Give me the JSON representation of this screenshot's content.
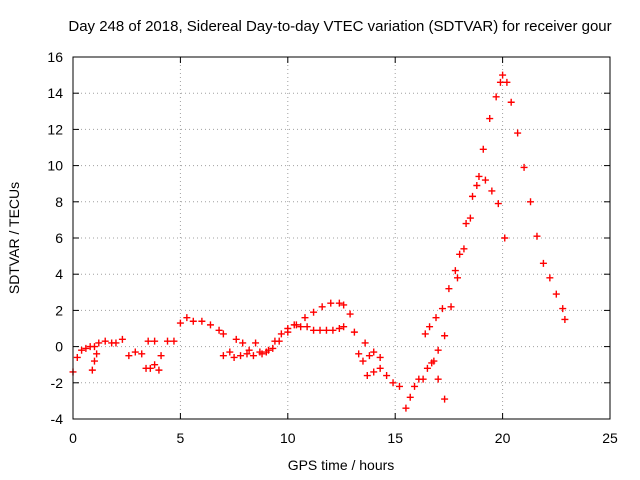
{
  "chart_data": {
    "type": "scatter",
    "title": "Day 248 of 2018, Sidereal Day-to-day VTEC variation (SDTVAR) for receiver gour",
    "xlabel": "GPS time / hours",
    "ylabel": "SDTVAR / TECUs",
    "xlim": [
      0,
      25
    ],
    "ylim": [
      -4,
      16
    ],
    "xticks": [
      0,
      5,
      10,
      15,
      20,
      25
    ],
    "yticks": [
      -4,
      -2,
      0,
      2,
      4,
      6,
      8,
      10,
      12,
      14,
      16
    ],
    "xtick_labels": [
      "0",
      "5",
      "10",
      "15",
      "20",
      "25"
    ],
    "ytick_labels": [
      "-4",
      "-2",
      "0",
      "2",
      "4",
      "6",
      "8",
      "10",
      "12",
      "14",
      "16"
    ],
    "grid": true,
    "marker": "+",
    "series": [
      {
        "name": "SDTVAR",
        "color": "#ff0000",
        "segments": [
          {
            "x": [
              0.0,
              0.2,
              0.4,
              0.6,
              0.8,
              1.0,
              1.2,
              1.5,
              1.8,
              2.0,
              2.3,
              2.6,
              2.9,
              3.2,
              3.5,
              3.8,
              4.1,
              4.4,
              4.7,
              5.0,
              5.3,
              5.6,
              6.0,
              6.4,
              6.8,
              7.0
            ],
            "y": [
              -1.4,
              -0.6,
              -0.2,
              -0.1,
              0.0,
              0.0,
              0.2,
              0.3,
              0.2,
              0.2,
              0.4,
              -0.5,
              -0.3,
              -0.4,
              0.3,
              0.3,
              -0.5,
              0.3,
              0.3,
              1.3,
              1.6,
              1.4,
              1.4,
              1.2,
              0.9,
              0.7
            ]
          },
          {
            "x": [
              0.9,
              1.0,
              1.1
            ],
            "y": [
              -1.3,
              -0.8,
              -0.4
            ]
          },
          {
            "x": [
              3.4,
              3.6,
              3.8,
              4.0
            ],
            "y": [
              -1.2,
              -1.2,
              -1.0,
              -1.3
            ]
          },
          {
            "x": [
              7.5,
              7.8,
              8.1,
              8.4,
              8.7,
              9.0,
              9.3,
              9.6,
              10.0,
              10.4,
              10.8,
              11.2,
              11.6,
              12.0,
              12.4,
              12.6
            ],
            "y": [
              -0.6,
              -0.5,
              -0.4,
              -0.5,
              -0.3,
              -0.3,
              -0.1,
              0.3,
              0.8,
              1.2,
              1.6,
              1.9,
              2.2,
              2.4,
              2.4,
              2.3
            ]
          },
          {
            "x": [
              7.0,
              7.3,
              7.6,
              7.9,
              8.2,
              8.5,
              8.8,
              9.1,
              9.4,
              9.7,
              10.0,
              10.3,
              10.6,
              10.9,
              11.2,
              11.5,
              11.8,
              12.1,
              12.4,
              12.6
            ],
            "y": [
              -0.5,
              -0.3,
              0.4,
              0.2,
              -0.2,
              0.2,
              -0.4,
              -0.2,
              0.3,
              0.7,
              1.0,
              1.2,
              1.1,
              1.1,
              0.9,
              0.9,
              0.9,
              0.9,
              1.0,
              1.1
            ]
          },
          {
            "x": [
              12.9,
              13.1,
              13.3,
              13.5,
              13.7,
              14.0,
              14.3,
              14.6,
              14.9,
              15.2,
              15.5,
              15.7,
              15.9,
              16.1,
              16.3,
              16.5,
              16.7,
              17.0,
              17.3
            ],
            "y": [
              1.8,
              0.8,
              -0.4,
              -0.8,
              -1.6,
              -1.4,
              -1.2,
              -1.6,
              -2.0,
              -2.2,
              -3.4,
              -2.8,
              -2.2,
              -1.8,
              -1.8,
              -1.2,
              -0.9,
              -1.8,
              -2.9
            ]
          },
          {
            "x": [
              13.6,
              13.8,
              14.0,
              14.3
            ],
            "y": [
              0.2,
              -0.5,
              -0.3,
              -0.6
            ]
          },
          {
            "x": [
              16.4,
              16.6,
              16.9,
              17.2,
              17.5,
              17.8,
              18.0,
              18.3,
              18.6,
              18.9,
              19.2,
              19.5,
              19.8,
              20.1
            ],
            "y": [
              0.7,
              1.1,
              1.6,
              2.1,
              3.2,
              4.2,
              5.1,
              6.8,
              8.3,
              9.4,
              9.2,
              8.6,
              7.9,
              6.0
            ]
          },
          {
            "x": [
              16.8,
              17.0,
              17.3,
              17.6,
              17.9,
              18.2,
              18.5,
              18.8,
              19.1,
              19.4,
              19.7,
              19.9,
              20.0,
              20.2,
              20.4,
              20.7,
              21.0,
              21.3,
              21.6,
              21.9,
              22.2,
              22.5,
              22.8,
              22.9
            ],
            "y": [
              -0.8,
              -0.2,
              0.6,
              2.2,
              3.8,
              5.4,
              7.1,
              8.9,
              10.9,
              12.6,
              13.8,
              14.6,
              15.0,
              14.6,
              13.5,
              11.8,
              9.9,
              8.0,
              6.1,
              4.6,
              3.8,
              2.9,
              2.1,
              1.5
            ]
          }
        ]
      }
    ]
  }
}
